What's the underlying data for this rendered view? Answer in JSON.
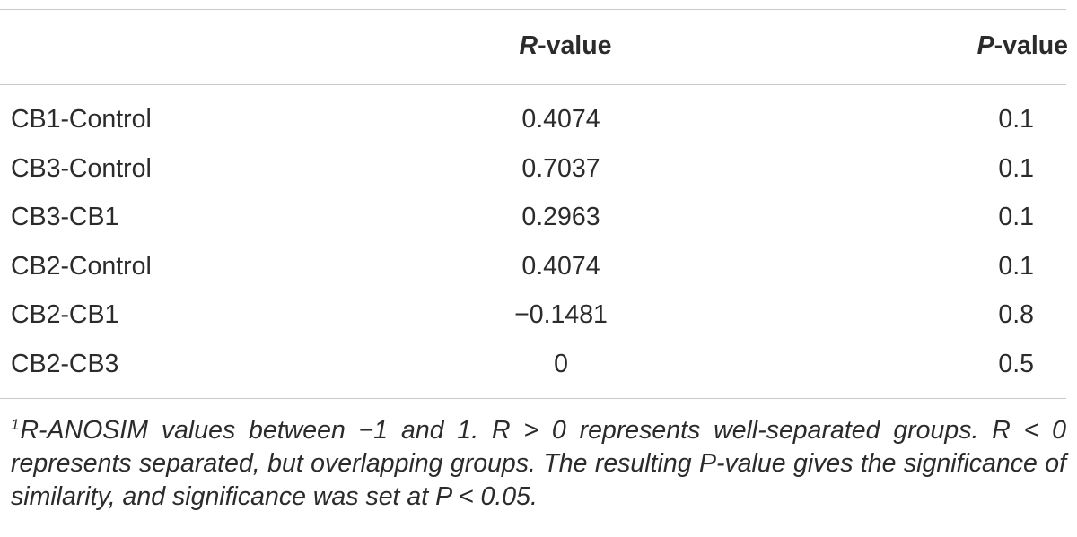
{
  "table": {
    "header": {
      "row_label": "",
      "r_value_prefix": "R",
      "r_value_suffix": "-value",
      "p_value_prefix": "P",
      "p_value_suffix": "-value"
    },
    "rows": [
      {
        "comparison": "CB1-Control",
        "r_value": "0.4074",
        "p_value": "0.1"
      },
      {
        "comparison": "CB3-Control",
        "r_value": "0.7037",
        "p_value": "0.1"
      },
      {
        "comparison": "CB3-CB1",
        "r_value": "0.2963",
        "p_value": "0.1"
      },
      {
        "comparison": "CB2-Control",
        "r_value": "0.4074",
        "p_value": "0.1"
      },
      {
        "comparison": "CB2-CB1",
        "r_value": "−0.1481",
        "p_value": "0.8"
      },
      {
        "comparison": "CB2-CB3",
        "r_value": "0",
        "p_value": "0.5"
      }
    ]
  },
  "footnote": {
    "marker": "1",
    "text": "R-ANOSIM values between −1 and 1. R > 0 represents well-separated groups. R < 0 represents separated, but overlapping groups. The resulting P-value gives the significance of similarity, and significance was set at P < 0.05."
  }
}
